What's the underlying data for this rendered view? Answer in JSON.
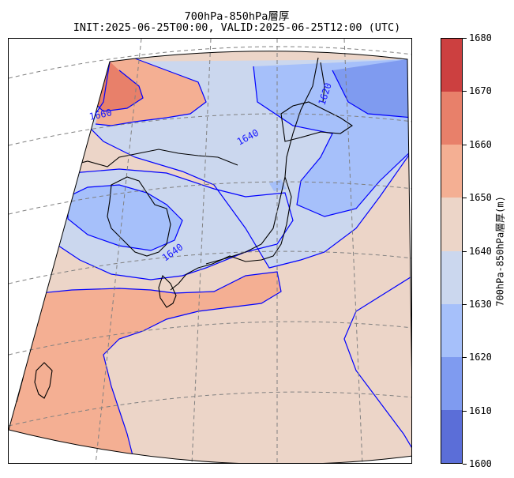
{
  "header": {
    "title": "700hPa-850hPa層厚",
    "subtitle": "INIT:2025-06-25T00:00, VALID:2025-06-25T12:00 (UTC)"
  },
  "colorbar": {
    "title": "700hPa-850hPa層厚(m)",
    "levels": [
      "1600",
      "1610",
      "1620",
      "1630",
      "1640",
      "1650",
      "1660",
      "1670",
      "1680"
    ],
    "colors": [
      "#5b6ed8",
      "#7f9bf0",
      "#a6c0fa",
      "#cbd7ee",
      "#ecd5c8",
      "#f4af93",
      "#e8806a",
      "#cc4040"
    ]
  },
  "map": {
    "contour_color": "#0000ff",
    "contour_labels": [
      "1660",
      "1640",
      "1620",
      "1640"
    ],
    "graticule_color": "#808080"
  }
}
